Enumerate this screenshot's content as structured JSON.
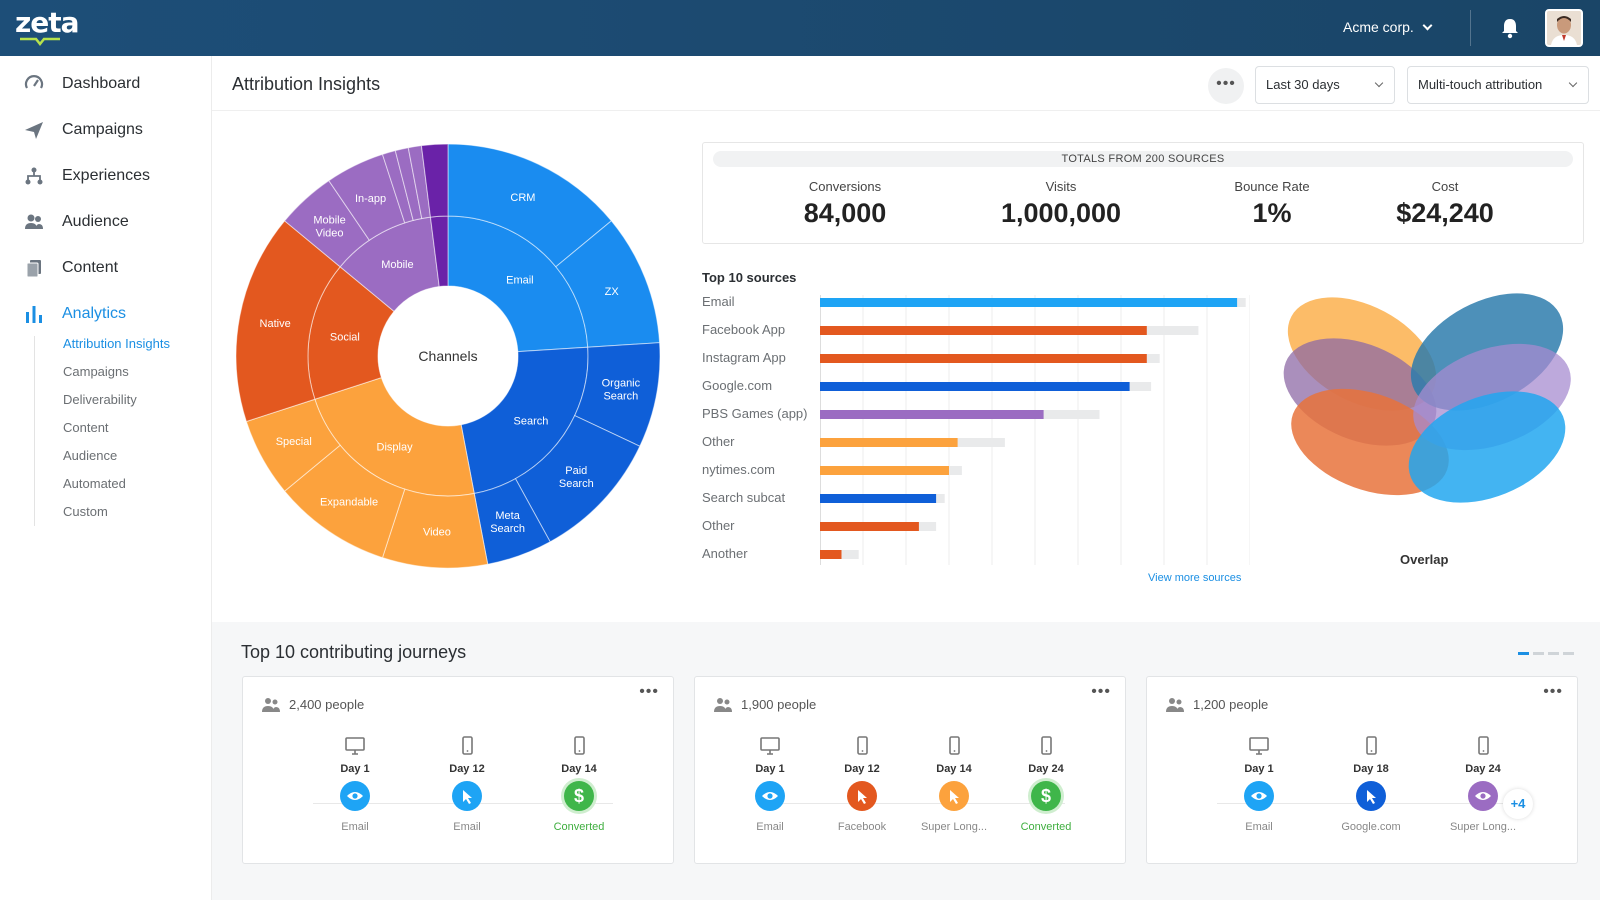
{
  "app": {
    "logo": "zeta",
    "org_name": "Acme corp."
  },
  "colors": {
    "accent": "#1b8fe3",
    "header": "#1d4e78"
  },
  "sidebar": {
    "items": [
      {
        "label": "Dashboard",
        "icon": "gauge-icon"
      },
      {
        "label": "Campaigns",
        "icon": "paper-plane-icon"
      },
      {
        "label": "Experiences",
        "icon": "hierarchy-icon"
      },
      {
        "label": "Audience",
        "icon": "people-icon"
      },
      {
        "label": "Content",
        "icon": "documents-icon"
      },
      {
        "label": "Analytics",
        "icon": "bar-chart-icon",
        "active": true
      }
    ],
    "sub_items": [
      "Attribution Insights",
      "Campaigns",
      "Deliverability",
      "Content",
      "Audience",
      "Automated",
      "Custom"
    ]
  },
  "header": {
    "title": "Attribution Insights",
    "more_label": "•••",
    "date_range": "Last 30 days",
    "model": "Multi-touch attribution"
  },
  "totals": {
    "caption": "TOTALS FROM 200 SOURCES",
    "metrics": [
      {
        "label": "Conversions",
        "value": "84,000"
      },
      {
        "label": "Visits",
        "value": "1,000,000"
      },
      {
        "label": "Bounce Rate",
        "value": "1%"
      },
      {
        "label": "Cost",
        "value": "$24,240"
      }
    ]
  },
  "sunburst": {
    "center_label": "Channels",
    "inner": [
      {
        "label": "Email",
        "value": 24,
        "color": "#1a8cf0"
      },
      {
        "label": "Search",
        "value": 23,
        "color": "#0f5fd8"
      },
      {
        "label": "Display",
        "value": 23,
        "color": "#fca23d"
      },
      {
        "label": "Social",
        "value": 16,
        "color": "#e3581f"
      },
      {
        "label": "Mobile",
        "value": 12,
        "color": "#9b6cc2"
      },
      {
        "label": "",
        "value": 2,
        "color": "#6a22a8"
      }
    ],
    "outer": [
      {
        "label": "CRM",
        "value": 14,
        "color": "#1a8cf0"
      },
      {
        "label": "ZX",
        "value": 10,
        "color": "#1a8cf0"
      },
      {
        "label": "Organic Search",
        "value": 8,
        "color": "#0f5fd8"
      },
      {
        "label": "Paid Search",
        "value": 10,
        "color": "#0f5fd8"
      },
      {
        "label": "Meta Search",
        "value": 5,
        "color": "#0f5fd8"
      },
      {
        "label": "Video",
        "value": 8,
        "color": "#fca23d"
      },
      {
        "label": "Expandable",
        "value": 9,
        "color": "#fca23d"
      },
      {
        "label": "Special",
        "value": 6,
        "color": "#fca23d"
      },
      {
        "label": "Native",
        "value": 16,
        "color": "#e3581f"
      },
      {
        "label": "Mobile Video",
        "value": 4.5,
        "color": "#9b6cc2"
      },
      {
        "label": "In-app",
        "value": 4.5,
        "color": "#9b6cc2"
      },
      {
        "label": "",
        "value": 1,
        "color": "#9b6cc2"
      },
      {
        "label": "",
        "value": 1,
        "color": "#9b6cc2"
      },
      {
        "label": "",
        "value": 1,
        "color": "#9b6cc2"
      },
      {
        "label": "",
        "value": 2,
        "color": "#6a22a8"
      }
    ]
  },
  "chart_data": {
    "type": "bar",
    "title": "Top 10 sources",
    "orientation": "horizontal",
    "categories": [
      "Email",
      "Facebook App",
      "Instagram App",
      "Google.com",
      "PBS Games (app)",
      "Other",
      "nytimes.com",
      "Search subcat",
      "Other",
      "Another"
    ],
    "values": [
      97,
      76,
      76,
      72,
      52,
      32,
      30,
      27,
      23,
      5
    ],
    "totals": [
      99,
      88,
      79,
      77,
      65,
      43,
      33,
      29,
      27,
      9
    ],
    "colors": [
      "#1ea4f5",
      "#e3581f",
      "#e3581f",
      "#0f5fd8",
      "#9b6cc2",
      "#fca23d",
      "#fca23d",
      "#0f5fd8",
      "#e3581f",
      "#e3581f"
    ],
    "xlim": [
      0,
      100
    ],
    "grid": true
  },
  "sources": {
    "view_more": "View more sources"
  },
  "overlap": {
    "label": "Overlap"
  },
  "journeys": {
    "title": "Top 10 contributing journeys",
    "cards": [
      {
        "people": "2,400 people",
        "more": "•••",
        "extra": "",
        "steps": [
          {
            "day": "Day 1",
            "device": "desktop-icon",
            "icon": "eye-icon",
            "color": "#1ea4f5",
            "source": "Email"
          },
          {
            "day": "Day 12",
            "device": "mobile-icon",
            "icon": "cursor-icon",
            "color": "#1ea4f5",
            "source": "Email"
          },
          {
            "day": "Day 14",
            "device": "mobile-icon",
            "icon": "dollar-icon",
            "color": "#3fb64a",
            "source": "Converted",
            "symbol": "$"
          }
        ]
      },
      {
        "people": "1,900 people",
        "more": "•••",
        "extra": "",
        "steps": [
          {
            "day": "Day 1",
            "device": "desktop-icon",
            "icon": "eye-icon",
            "color": "#1ea4f5",
            "source": "Email"
          },
          {
            "day": "Day 12",
            "device": "mobile-icon",
            "icon": "cursor-icon",
            "color": "#e3581f",
            "source": "Facebook"
          },
          {
            "day": "Day 14",
            "device": "mobile-icon",
            "icon": "cursor-icon",
            "color": "#fca23d",
            "source": "Super Long..."
          },
          {
            "day": "Day 24",
            "device": "mobile-icon",
            "icon": "dollar-icon",
            "color": "#3fb64a",
            "source": "Converted",
            "symbol": "$"
          }
        ]
      },
      {
        "people": "1,200 people",
        "more": "•••",
        "extra": "+4",
        "steps": [
          {
            "day": "Day 1",
            "device": "desktop-icon",
            "icon": "eye-icon",
            "color": "#1ea4f5",
            "source": "Email"
          },
          {
            "day": "Day 18",
            "device": "mobile-icon",
            "icon": "cursor-icon",
            "color": "#0f5fd8",
            "source": "Google.com"
          },
          {
            "day": "Day 24",
            "device": "mobile-icon",
            "icon": "eye-icon",
            "color": "#9b6cc2",
            "source": "Super Long..."
          }
        ]
      }
    ]
  }
}
